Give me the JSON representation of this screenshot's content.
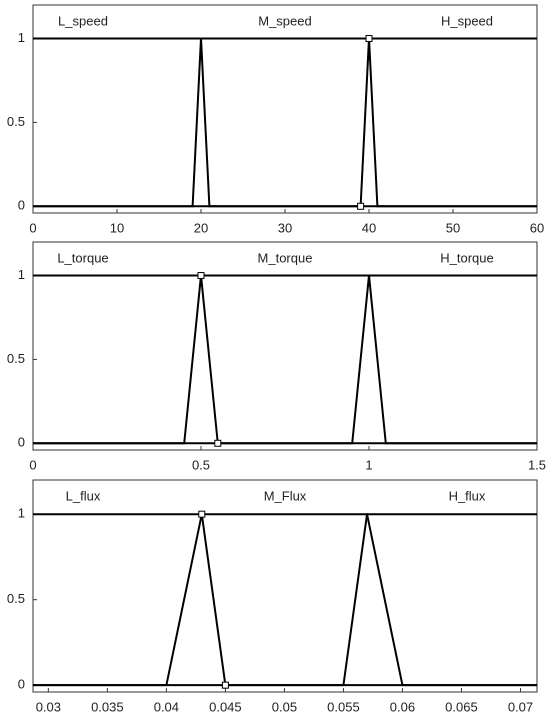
{
  "chart_data": [
    {
      "type": "line",
      "xlim": [
        0,
        60
      ],
      "xticks": [
        0,
        10,
        20,
        30,
        40,
        50,
        60
      ],
      "ylim": [
        -0.04,
        1.2
      ],
      "yticks": [
        0,
        0.5,
        1
      ],
      "series": [
        {
          "name": "L_speed",
          "color": "#000000",
          "x": [
            0,
            20,
            21,
            60
          ],
          "values": [
            1,
            1,
            0,
            0
          ]
        },
        {
          "name": "M_speed",
          "color": "#000000",
          "x": [
            0,
            19,
            20,
            40,
            41,
            60
          ],
          "values": [
            0,
            0,
            1,
            1,
            0,
            0
          ]
        },
        {
          "name": "H_speed",
          "color": "#000000",
          "x": [
            0,
            39,
            40,
            60
          ],
          "values": [
            0,
            0,
            1,
            1
          ]
        }
      ],
      "markers": {
        "x": [
          40,
          39
        ],
        "values": [
          1,
          0
        ]
      }
    },
    {
      "type": "line",
      "xlim": [
        0,
        1.5
      ],
      "xticks": [
        0,
        0.5,
        1,
        1.5
      ],
      "ylim": [
        -0.04,
        1.2
      ],
      "yticks": [
        0,
        0.5,
        1
      ],
      "series": [
        {
          "name": "L_torque",
          "color": "#000000",
          "x": [
            0,
            0.5,
            0.55,
            1.5
          ],
          "values": [
            1,
            1,
            0,
            0
          ]
        },
        {
          "name": "M_torque",
          "color": "#000000",
          "x": [
            0,
            0.45,
            0.5,
            1,
            1.05,
            1.5
          ],
          "values": [
            0,
            0,
            1,
            1,
            0,
            0
          ]
        },
        {
          "name": "H_torque",
          "color": "#000000",
          "x": [
            0,
            0.95,
            1,
            1.5
          ],
          "values": [
            0,
            0,
            1,
            1
          ]
        }
      ],
      "markers": {
        "x": [
          0.5,
          0.55
        ],
        "values": [
          1,
          0
        ]
      }
    },
    {
      "type": "line",
      "xlim": [
        0.0287,
        0.0714
      ],
      "xticks": [
        0.03,
        0.035,
        0.04,
        0.045,
        0.05,
        0.055,
        0.06,
        0.065,
        0.07
      ],
      "ylim": [
        -0.04,
        1.2
      ],
      "yticks": [
        0,
        0.5,
        1
      ],
      "series": [
        {
          "name": "L_flux",
          "color": "#000000",
          "x": [
            0.0287,
            0.043,
            0.045,
            0.0714
          ],
          "values": [
            1,
            1,
            0,
            0
          ]
        },
        {
          "name": "M_Flux",
          "color": "#000000",
          "x": [
            0.0287,
            0.04,
            0.043,
            0.057,
            0.06,
            0.0714
          ],
          "values": [
            0,
            0,
            1,
            1,
            0,
            0
          ]
        },
        {
          "name": "H_flux",
          "color": "#000000",
          "x": [
            0.0287,
            0.055,
            0.057,
            0.0714
          ],
          "values": [
            0,
            0,
            1,
            1
          ]
        }
      ],
      "markers": {
        "x": [
          0.043,
          0.045
        ],
        "values": [
          1,
          0
        ]
      }
    }
  ]
}
